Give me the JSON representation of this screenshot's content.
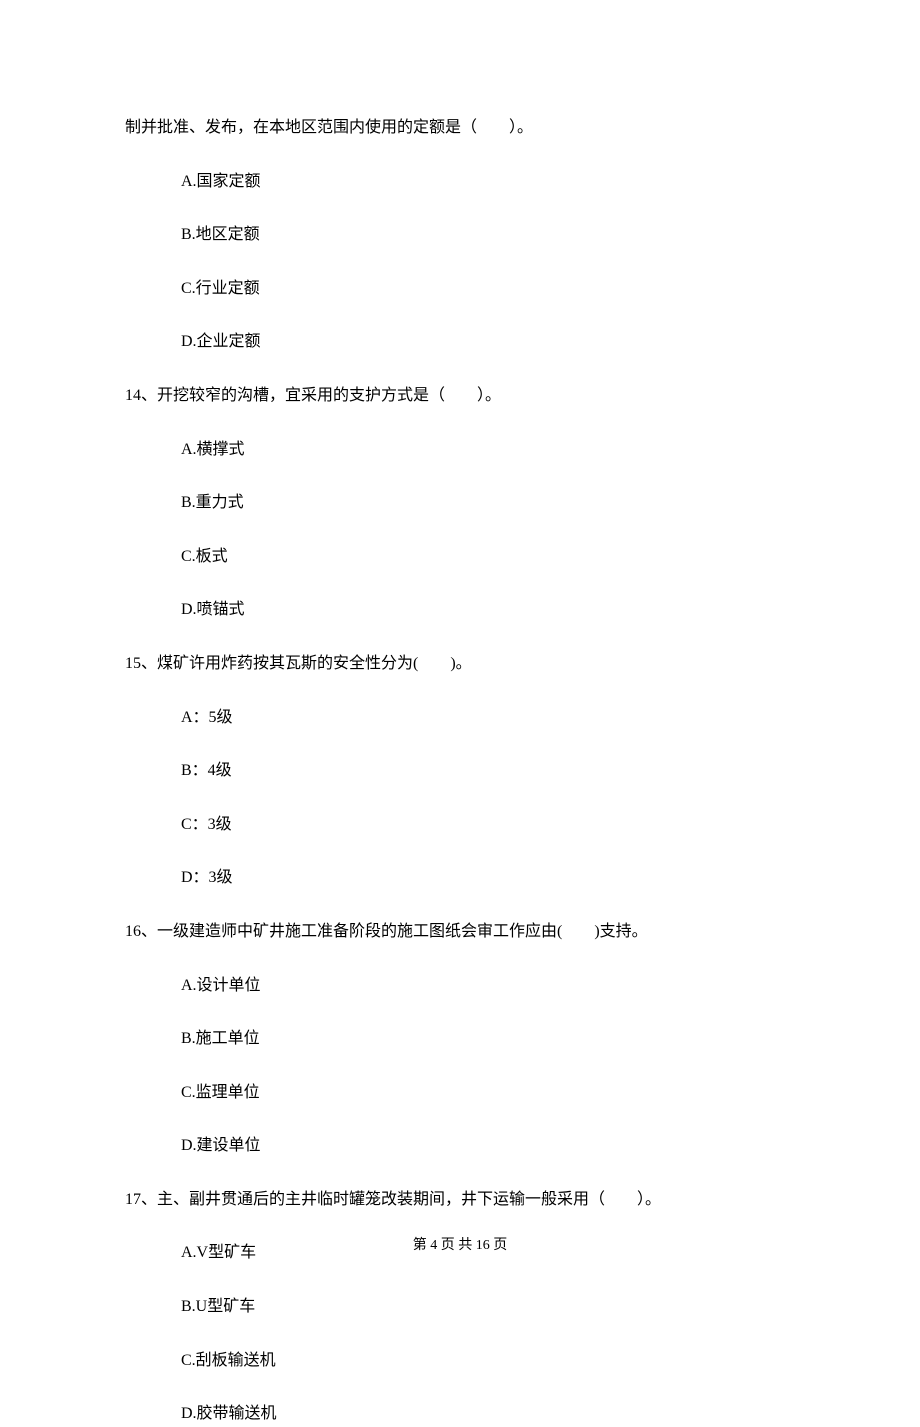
{
  "continuation_line": "制并批准、发布，在本地区范围内使用的定额是（　　）。",
  "q13": {
    "options": {
      "a": "A.国家定额",
      "b": "B.地区定额",
      "c": "C.行业定额",
      "d": "D.企业定额"
    }
  },
  "q14": {
    "text": "14、开挖较窄的沟槽，宜采用的支护方式是（　　）。",
    "options": {
      "a": "A.横撑式",
      "b": "B.重力式",
      "c": "C.板式",
      "d": "D.喷锚式"
    }
  },
  "q15": {
    "text": "15、煤矿许用炸药按其瓦斯的安全性分为(　　)。",
    "options": {
      "a": "A：5级",
      "b": "B：4级",
      "c": "C：3级",
      "d": "D：3级"
    }
  },
  "q16": {
    "text": "16、一级建造师中矿井施工准备阶段的施工图纸会审工作应由(　　)支持。",
    "options": {
      "a": "A.设计单位",
      "b": "B.施工单位",
      "c": "C.监理单位",
      "d": "D.建设单位"
    }
  },
  "q17": {
    "text": "17、主、副井贯通后的主井临时罐笼改装期间，井下运输一般采用（　　）。",
    "options": {
      "a": "A.V型矿车",
      "b": "B.U型矿车",
      "c": "C.刮板输送机",
      "d": "D.胶带输送机"
    }
  },
  "footer": "第 4 页 共 16 页"
}
